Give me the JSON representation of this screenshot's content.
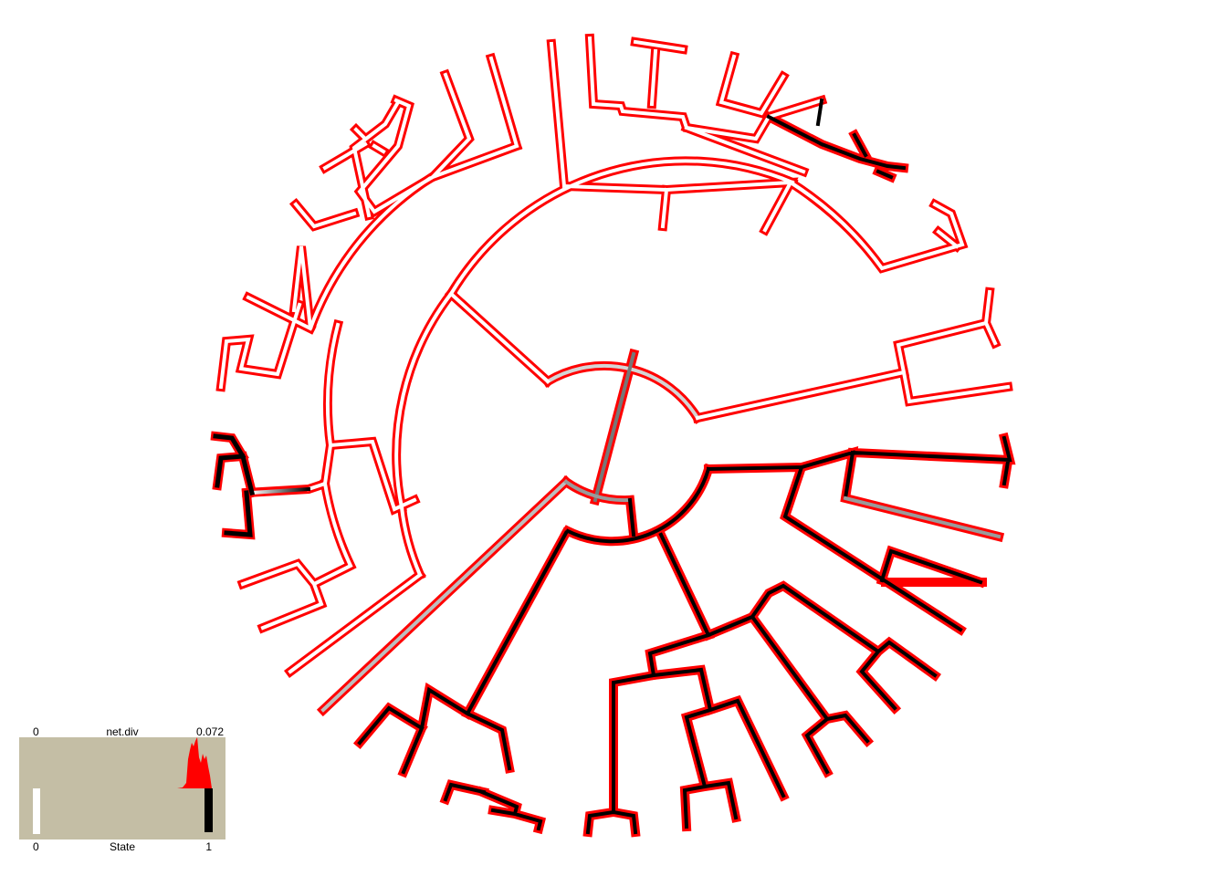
{
  "legend": {
    "top_left": "0",
    "top_title": "net.div",
    "top_right": "0.072",
    "bottom_left": "0",
    "bottom_title": "State",
    "bottom_right": "1"
  },
  "colors": {
    "background": "#ffffff",
    "net_div_outline": "#ff0000",
    "state0_fill": "#ffffff",
    "state1_fill": "#000000",
    "mixed_fill": "#cfcfcf",
    "legend_panel": "#c4bea5"
  }
}
